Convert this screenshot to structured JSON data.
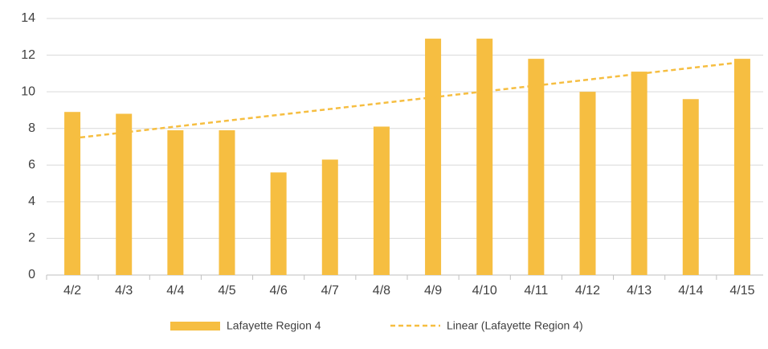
{
  "chart_data": {
    "type": "bar",
    "categories": [
      "4/2",
      "4/3",
      "4/4",
      "4/5",
      "4/6",
      "4/7",
      "4/8",
      "4/9",
      "4/10",
      "4/11",
      "4/12",
      "4/13",
      "4/14",
      "4/15"
    ],
    "series": [
      {
        "name": "Lafayette Region 4",
        "type": "bar",
        "color": "#f6be41",
        "values": [
          8.9,
          8.8,
          7.9,
          7.9,
          5.6,
          6.3,
          8.1,
          12.9,
          12.9,
          11.8,
          10,
          11.1,
          9.6,
          11.8
        ]
      },
      {
        "name": "Linear (Lafayette Region 4)",
        "type": "line",
        "dashed": true,
        "color": "#f6be41",
        "values": [
          7.46,
          7.78,
          8.1,
          8.42,
          8.74,
          9.06,
          9.38,
          9.7,
          10.02,
          10.34,
          10.66,
          10.98,
          11.3,
          11.62
        ]
      }
    ],
    "ylim": [
      0,
      14
    ],
    "yticks": [
      0,
      2,
      4,
      6,
      8,
      10,
      12,
      14
    ],
    "grid": true,
    "legend": "bottom"
  }
}
